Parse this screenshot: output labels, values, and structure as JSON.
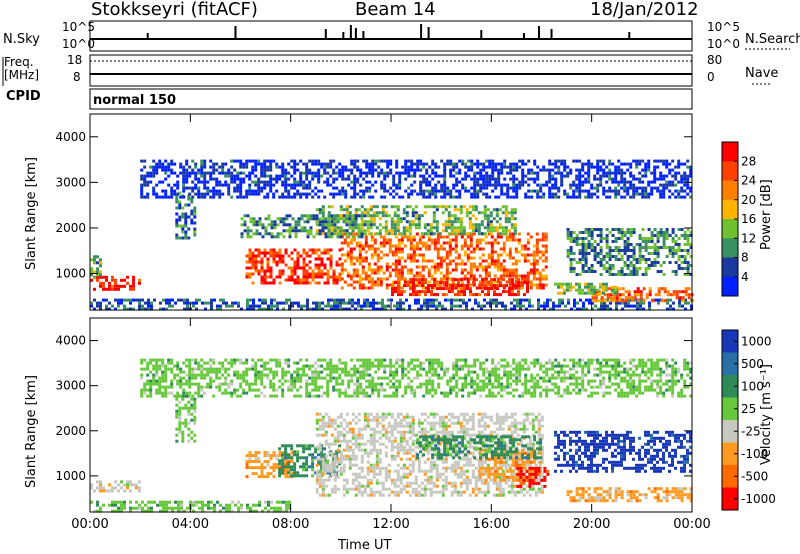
{
  "header": {
    "station": "Stokkseyri (fitACF)",
    "beam": "Beam 14",
    "date": "18/Jan/2012"
  },
  "strip_labels": {
    "nsky": "N.Sky",
    "nsearch": "N.Search",
    "freq_line1": "Freq.",
    "freq_line2": "[MHz]",
    "nave": "Nave",
    "cpid": "CPID",
    "mode": "normal 150"
  },
  "strip_ticks": {
    "noise_left": [
      "10^5",
      "10^0"
    ],
    "noise_right": [
      "10^5",
      "10^0"
    ],
    "freq_left": [
      "18",
      "8"
    ],
    "nave_right": [
      "80",
      "0"
    ]
  },
  "chart_data": [
    {
      "type": "heatmap",
      "name": "power",
      "ylabel": "Slant Range [km]",
      "xlabel": "Time UT",
      "xlim_hours": [
        0,
        24
      ],
      "ylim": [
        200,
        4500
      ],
      "x_tick_labels": [
        "00:00",
        "04:00",
        "08:00",
        "12:00",
        "16:00",
        "20:00",
        "00:00"
      ],
      "y_ticks": [
        1000,
        2000,
        3000,
        4000
      ],
      "y_tick_labels": [
        "1000",
        "2000",
        "3000",
        "4000"
      ],
      "colorbar": {
        "label": "Power [dB]",
        "tick_labels": [
          "28",
          "24",
          "20",
          "16",
          "12",
          "8",
          "4"
        ],
        "colors": [
          "#ff0000",
          "#ff4000",
          "#ff8000",
          "#ffb400",
          "#70c030",
          "#3a9060",
          "#1a3aa0",
          "#0020ff"
        ]
      },
      "regions": [
        {
          "t0": 0.0,
          "t1": 2.0,
          "r0": 650,
          "r1": 950,
          "level": 0.9
        },
        {
          "t0": 0.0,
          "t1": 0.4,
          "r0": 900,
          "r1": 1400,
          "level": 0.4
        },
        {
          "t0": 3.4,
          "t1": 4.2,
          "r0": 1800,
          "r1": 2800,
          "level": 0.25
        },
        {
          "t0": 6.2,
          "t1": 10.0,
          "r0": 800,
          "r1": 1550,
          "level": 0.85
        },
        {
          "t0": 10.0,
          "t1": 18.2,
          "r0": 700,
          "r1": 1900,
          "level": 0.75
        },
        {
          "t0": 12.0,
          "t1": 17.5,
          "r0": 550,
          "r1": 900,
          "level": 0.9
        },
        {
          "t0": 9.0,
          "t1": 17.0,
          "r0": 1900,
          "r1": 2500,
          "level": 0.4
        },
        {
          "t0": 6.0,
          "t1": 11.0,
          "r0": 1800,
          "r1": 2300,
          "level": 0.3
        },
        {
          "t0": 0.0,
          "t1": 24.0,
          "r0": 250,
          "r1": 450,
          "level": 0.2
        },
        {
          "t0": 20.0,
          "t1": 24.0,
          "r0": 400,
          "r1": 700,
          "level": 0.75
        },
        {
          "t0": 18.5,
          "t1": 21.0,
          "r0": 550,
          "r1": 800,
          "level": 0.45
        },
        {
          "t0": 19.0,
          "t1": 24.0,
          "r0": 1000,
          "r1": 2000,
          "level": 0.3
        },
        {
          "t0": 2.0,
          "t1": 24.0,
          "r0": 2700,
          "r1": 3500,
          "level": 0.1
        }
      ]
    },
    {
      "type": "heatmap",
      "name": "velocity",
      "ylabel": "Slant Range [km]",
      "xlabel": "Time UT",
      "xlim_hours": [
        0,
        24
      ],
      "ylim": [
        200,
        4500
      ],
      "x_tick_labels": [
        "00:00",
        "04:00",
        "08:00",
        "12:00",
        "16:00",
        "20:00",
        "00:00"
      ],
      "y_ticks": [
        1000,
        2000,
        3000,
        4000
      ],
      "y_tick_labels": [
        "1000",
        "2000",
        "3000",
        "4000"
      ],
      "colorbar": {
        "label": "Velocity [m s⁻¹]",
        "tick_labels": [
          "1000",
          "500",
          "100",
          "25",
          "-25",
          "-100",
          "-500",
          "-1000"
        ],
        "colors": [
          "#1838b8",
          "#2a6ea8",
          "#2e8a56",
          "#66c83a",
          "#c8c8c0",
          "#ff9a20",
          "#ff6a00",
          "#ff0000"
        ]
      },
      "regions": [
        {
          "t0": 0.0,
          "t1": 2.0,
          "r0": 700,
          "r1": 900,
          "level": "ground"
        },
        {
          "t0": 3.4,
          "t1": 4.2,
          "r0": 1800,
          "r1": 2800,
          "level": "green"
        },
        {
          "t0": 6.2,
          "t1": 8.0,
          "r0": 1000,
          "r1": 1550,
          "level": "orange"
        },
        {
          "t0": 7.5,
          "t1": 10.0,
          "r0": 1000,
          "r1": 1700,
          "level": "darkgreen"
        },
        {
          "t0": 9.0,
          "t1": 18.0,
          "r0": 600,
          "r1": 2400,
          "level": "ground"
        },
        {
          "t0": 15.5,
          "t1": 18.0,
          "r0": 900,
          "r1": 1600,
          "level": "orange"
        },
        {
          "t0": 17.0,
          "t1": 18.3,
          "r0": 800,
          "r1": 1200,
          "level": "red"
        },
        {
          "t0": 13.0,
          "t1": 18.0,
          "r0": 1400,
          "r1": 1900,
          "level": "darkgreen"
        },
        {
          "t0": 19.0,
          "t1": 24.0,
          "r0": 450,
          "r1": 750,
          "level": "orange"
        },
        {
          "t0": 18.5,
          "t1": 24.0,
          "r0": 1100,
          "r1": 2000,
          "level": "blue"
        },
        {
          "t0": 0.0,
          "t1": 8.0,
          "r0": 250,
          "r1": 450,
          "level": "green"
        },
        {
          "t0": 2.0,
          "t1": 24.0,
          "r0": 2800,
          "r1": 3600,
          "level": "green"
        }
      ]
    }
  ]
}
